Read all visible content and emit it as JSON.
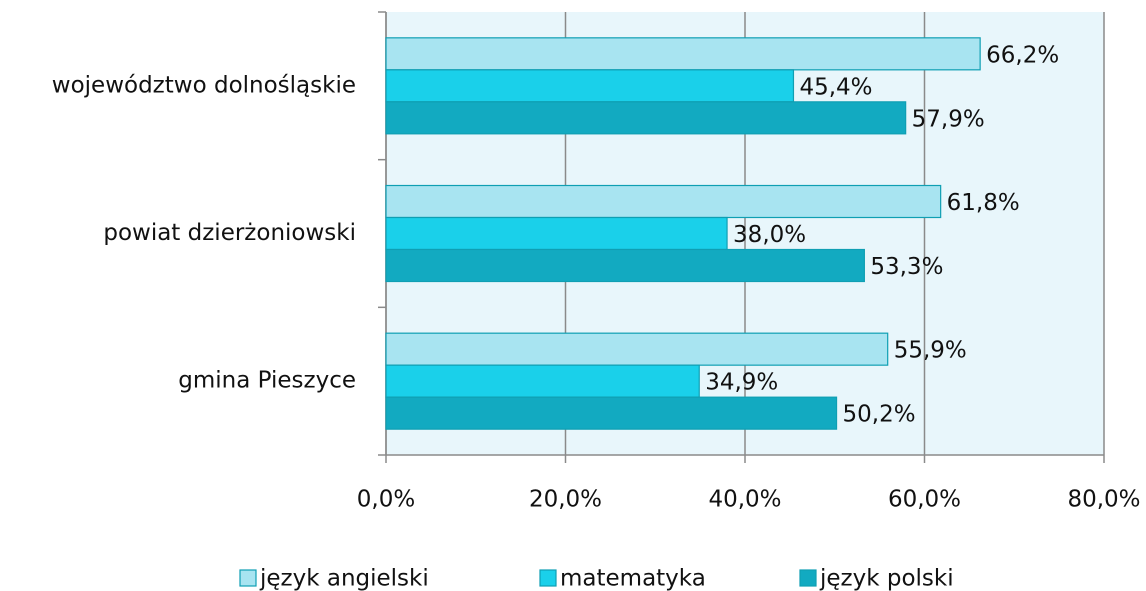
{
  "chart_data": {
    "type": "hbar",
    "categories": [
      "województwo dolnośląskie",
      "powiat dzierżoniowski",
      "gmina Pieszyce"
    ],
    "series": [
      {
        "name": "język angielski",
        "color": "#a8e4f1",
        "values": [
          66.2,
          61.8,
          55.9
        ],
        "value_labels": [
          "66,2%",
          "61,8%",
          "55,9%"
        ]
      },
      {
        "name": "matematyka",
        "color": "#1ad0ea",
        "values": [
          45.4,
          38.0,
          34.9
        ],
        "value_labels": [
          "45,4%",
          "38,0%",
          "34,9%"
        ]
      },
      {
        "name": "język polski",
        "color": "#12aac1",
        "values": [
          57.9,
          53.3,
          50.2
        ],
        "value_labels": [
          "57,9%",
          "53,3%",
          "50,2%"
        ]
      }
    ],
    "xlim": [
      0,
      80
    ],
    "xticks": [
      {
        "value": 0,
        "label": "0,0%"
      },
      {
        "value": 20,
        "label": "20,0%"
      },
      {
        "value": 40,
        "label": "40,0%"
      },
      {
        "value": 60,
        "label": "60,0%"
      },
      {
        "value": 80,
        "label": "80,0%"
      }
    ],
    "grid": true,
    "legend": "bottom"
  }
}
